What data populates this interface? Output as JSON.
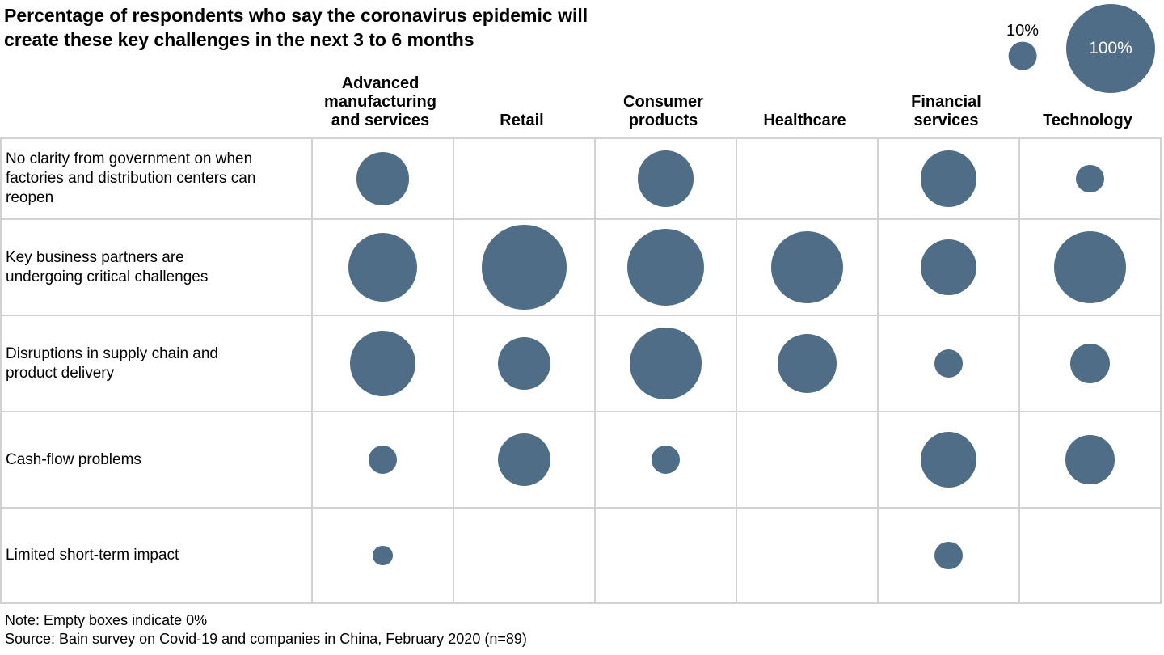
{
  "title": "Percentage of respondents who say the coronavirus epidemic will\ncreate these key challenges in the next 3 to 6 months",
  "legend": {
    "small": {
      "label": "10%",
      "value": 10
    },
    "large": {
      "label": "100%",
      "value": 100
    }
  },
  "chart_data": {
    "type": "bubble-matrix",
    "title": "Percentage of respondents who say the coronavirus epidemic will create these key challenges in the next 3 to 6 months",
    "unit": "percent of respondents",
    "bubble_color": "#506D87",
    "size_encoding": "circle area proportional to percentage; legend shows 10% and 100% reference circles; empty cells = 0%",
    "columns": [
      "Advanced manufacturing and services",
      "Retail",
      "Consumer products",
      "Healthcare",
      "Financial services",
      "Technology"
    ],
    "rows": [
      "No clarity from government on when factories and distribution centers can reopen",
      "Key business partners are undergoing critical challenges",
      "Disruptions in supply chain and product delivery",
      "Cash-flow problems",
      "Limited short-term impact"
    ],
    "values": [
      [
        35,
        0,
        40,
        0,
        40,
        10
      ],
      [
        60,
        90,
        75,
        65,
        40,
        65
      ],
      [
        55,
        35,
        65,
        45,
        10,
        20
      ],
      [
        10,
        35,
        10,
        0,
        40,
        30
      ],
      [
        5,
        0,
        0,
        0,
        10,
        0
      ]
    ]
  },
  "footer": {
    "note": "Note: Empty boxes indicate 0%",
    "source": "Source: Bain survey on Covid-19 and companies in China, February 2020 (n=89)"
  }
}
